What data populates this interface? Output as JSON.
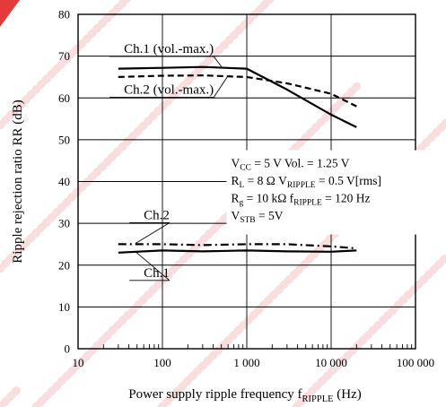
{
  "chart_data": {
    "type": "line",
    "xscale": "log",
    "xlim": [
      10,
      100000
    ],
    "ylim": [
      0,
      80
    ],
    "grid": true,
    "xlabel": {
      "main": "Power supply ripple frequency  f",
      "sub": "RIPPLE",
      "unit": "(Hz)"
    },
    "ylabel": "Ripple rejection ratio  RR  (dB)",
    "xticks": [
      {
        "value": 10,
        "label": "10"
      },
      {
        "value": 100,
        "label": "100"
      },
      {
        "value": 1000,
        "label": "1 000"
      },
      {
        "value": 10000,
        "label": "10 000"
      },
      {
        "value": 100000,
        "label": "100 000"
      }
    ],
    "yticks": [
      {
        "value": 0,
        "label": "0"
      },
      {
        "value": 10,
        "label": "10"
      },
      {
        "value": 20,
        "label": "20"
      },
      {
        "value": 30,
        "label": "30"
      },
      {
        "value": 40,
        "label": "40"
      },
      {
        "value": 50,
        "label": "50"
      },
      {
        "value": 60,
        "label": "60"
      },
      {
        "value": 70,
        "label": "70"
      },
      {
        "value": 80,
        "label": "80"
      }
    ],
    "series": [
      {
        "name": "Ch.1 (vol.-max.)",
        "style": "solid",
        "x": [
          30,
          100,
          300,
          1000,
          3000,
          10000,
          20000
        ],
        "y": [
          67,
          67.2,
          67.4,
          67,
          62,
          56,
          53
        ]
      },
      {
        "name": "Ch.2 (vol.-max.)",
        "style": "dashed",
        "x": [
          30,
          100,
          300,
          1000,
          3000,
          10000,
          20000
        ],
        "y": [
          65,
          65.3,
          65.4,
          65,
          63.5,
          61,
          58
        ]
      },
      {
        "name": "Ch.2",
        "style": "dashdot",
        "x": [
          30,
          100,
          300,
          1000,
          3000,
          10000,
          20000
        ],
        "y": [
          25,
          25,
          24.8,
          25,
          25,
          24.5,
          24
        ]
      },
      {
        "name": "Ch.1",
        "style": "solid",
        "x": [
          30,
          100,
          300,
          1000,
          3000,
          10000,
          20000
        ],
        "y": [
          23,
          23.5,
          23.3,
          23.5,
          23.3,
          23.2,
          23.5
        ]
      }
    ],
    "annotations": [
      {
        "text": "Ch.1 (vol.-max.)",
        "x": 35,
        "y": 70.8,
        "target_x": 500,
        "target_y": 67.5
      },
      {
        "text": "Ch.2 (vol.-max.)",
        "x": 35,
        "y": 61,
        "target_x": 600,
        "target_y": 65.3
      },
      {
        "text": "Ch.2",
        "x": 60,
        "y": 31,
        "target_x": 48,
        "target_y": 25.2
      },
      {
        "text": "Ch.1",
        "x": 60,
        "y": 17.2,
        "target_x": 48,
        "target_y": 23.2
      }
    ],
    "conditions": [
      [
        {
          "t": "V"
        },
        {
          "t": "CC",
          "sub": true
        },
        {
          "t": " = 5 V    Vol. = 1.25 V"
        }
      ],
      [
        {
          "t": "R"
        },
        {
          "t": "L",
          "sub": true
        },
        {
          "t": " = 8 Ω     V"
        },
        {
          "t": "RIPPLE",
          "sub": true
        },
        {
          "t": " = 0.5 V[rms]"
        }
      ],
      [
        {
          "t": "R"
        },
        {
          "t": "g",
          "sub": true
        },
        {
          "t": " = 10 kΩ  f"
        },
        {
          "t": "RIPPLE",
          "sub": true
        },
        {
          "t": " = 120 Hz"
        }
      ],
      [
        {
          "t": "V"
        },
        {
          "t": "STB",
          "sub": true
        },
        {
          "t": " = 5V"
        }
      ]
    ]
  }
}
